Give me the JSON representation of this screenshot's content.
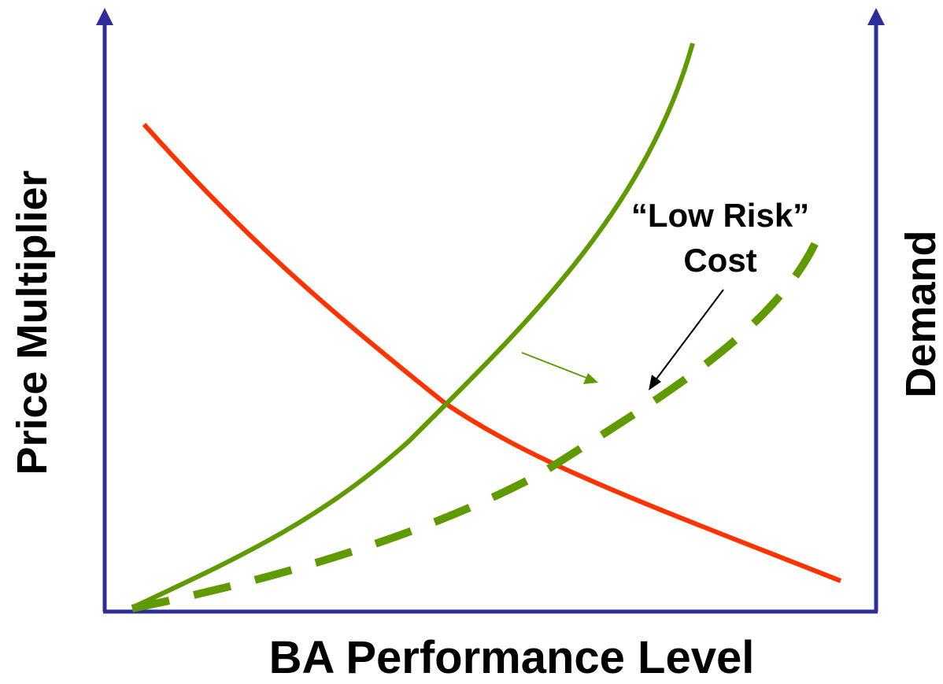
{
  "diagram": {
    "x_axis_label": "BA Performance Level",
    "y_axis_left_label": "Price Multiplier",
    "y_axis_right_label": "Demand",
    "annotation": {
      "line1": "“Low Risk”",
      "line2": "Cost"
    },
    "colors": {
      "axis": "#2e2e9a",
      "demand_curve": "#ff3300",
      "price_curve": "#5f9a00",
      "low_risk_cost_curve": "#5f9a00",
      "annotation_arrow": "#000000",
      "shift_arrow": "#5f9a00"
    }
  }
}
